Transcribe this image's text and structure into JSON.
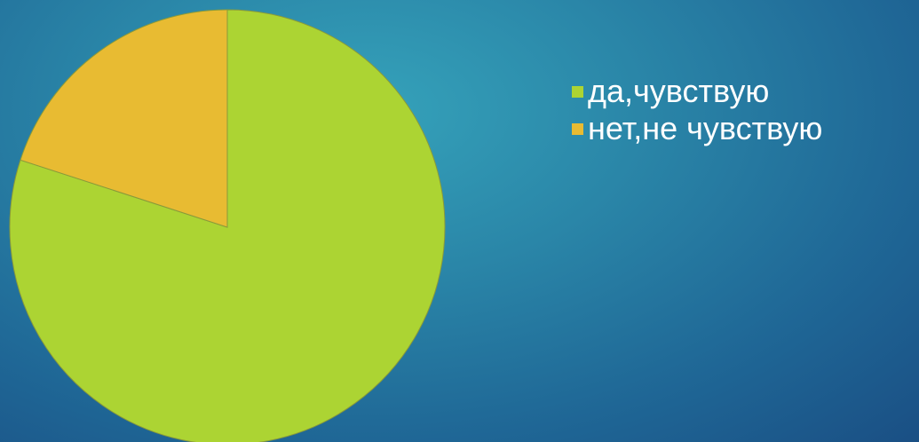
{
  "chart_data": {
    "type": "pie",
    "categories": [
      "да,чувствую",
      "нет,не чувствую"
    ],
    "values": [
      80,
      20
    ],
    "colors": [
      "#acd433",
      "#e8bb32"
    ],
    "legend_position": "right"
  }
}
